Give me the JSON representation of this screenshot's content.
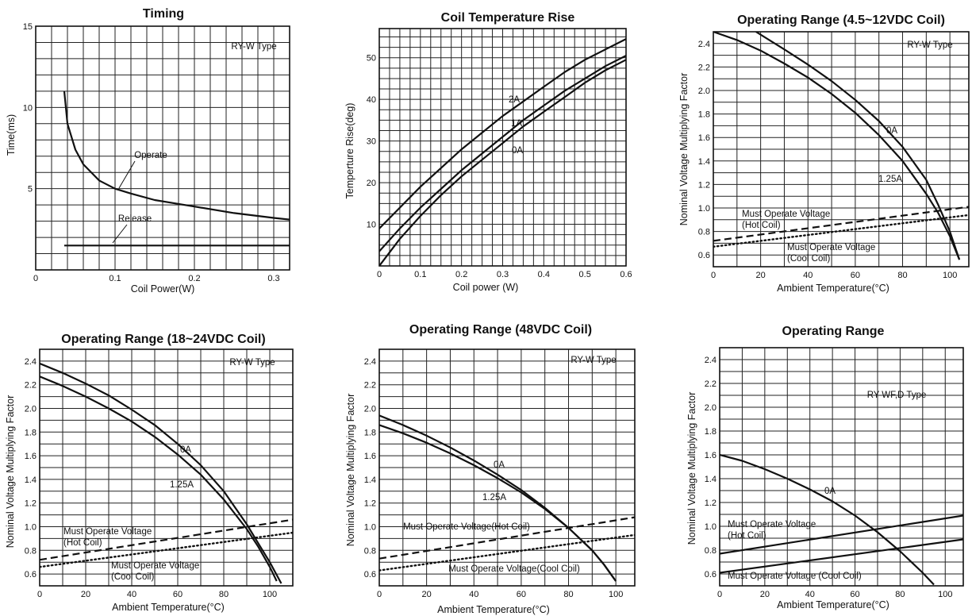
{
  "chart_data": [
    {
      "type": "line",
      "title": "Timing",
      "xlabel": "Coil Power(W)",
      "ylabel": "Time(ms)",
      "xlim": [
        0,
        0.32
      ],
      "ylim": [
        0,
        15
      ],
      "x_ticks": [
        0,
        0.1,
        0.2,
        0.3
      ],
      "x_tick_labels": [
        "0",
        "0.1",
        "0.2",
        "0.3"
      ],
      "y_ticks": [
        5,
        10,
        15
      ],
      "y_tick_labels": [
        "5",
        "10",
        "15"
      ],
      "grid": true,
      "type_label": "RY-W  Type",
      "series": [
        {
          "name": "Operate",
          "style": "solid",
          "x": [
            0.036,
            0.04,
            0.05,
            0.06,
            0.08,
            0.1,
            0.12,
            0.15,
            0.2,
            0.25,
            0.3,
            0.32
          ],
          "y": [
            11.0,
            9.0,
            7.4,
            6.5,
            5.5,
            5.0,
            4.7,
            4.3,
            3.9,
            3.5,
            3.2,
            3.1
          ]
        },
        {
          "name": "Release",
          "style": "solid",
          "x": [
            0.036,
            0.32
          ],
          "y": [
            1.5,
            1.5
          ]
        }
      ]
    },
    {
      "type": "line",
      "title": "Coil Temperature Rise",
      "xlabel": "Coil power (W)",
      "ylabel": "Temperture Rise(deg)",
      "xlim": [
        0,
        0.6
      ],
      "ylim": [
        0,
        57
      ],
      "x_ticks": [
        0,
        0.1,
        0.2,
        0.3,
        0.4,
        0.5,
        0.6
      ],
      "x_tick_labels": [
        "0",
        "0.1",
        "0.2",
        "0.3",
        "0.4",
        "0.5",
        "0.6"
      ],
      "y_ticks": [
        10,
        20,
        30,
        40,
        50
      ],
      "y_tick_labels": [
        "10",
        "20",
        "30",
        "40",
        "50"
      ],
      "grid": true,
      "series": [
        {
          "name": "2A",
          "style": "solid",
          "x": [
            0,
            0.05,
            0.1,
            0.15,
            0.2,
            0.25,
            0.3,
            0.35,
            0.4,
            0.45,
            0.5,
            0.55,
            0.6
          ],
          "y": [
            9,
            14,
            19,
            23.5,
            28,
            32,
            36,
            39.5,
            43,
            46.5,
            49.5,
            52,
            54.5
          ]
        },
        {
          "name": "1A",
          "style": "solid",
          "x": [
            0,
            0.05,
            0.1,
            0.15,
            0.2,
            0.25,
            0.3,
            0.35,
            0.4,
            0.45,
            0.5,
            0.55,
            0.6
          ],
          "y": [
            3.5,
            9,
            14,
            18.5,
            23,
            27,
            31,
            35,
            38.5,
            42,
            45,
            48,
            50.5
          ]
        },
        {
          "name": "0A",
          "style": "solid",
          "x": [
            0,
            0.05,
            0.1,
            0.15,
            0.2,
            0.25,
            0.3,
            0.35,
            0.4,
            0.45,
            0.5,
            0.55,
            0.6
          ],
          "y": [
            0,
            6.5,
            12,
            17,
            21.5,
            25.5,
            29.5,
            33.5,
            37,
            40.5,
            44,
            47,
            49.5
          ]
        }
      ]
    },
    {
      "type": "line",
      "title": "Operating Range (4.5~12VDC Coil)",
      "xlabel": "Ambient Temperature(°C)",
      "ylabel": "Nominal Voltage Multiplying Factor",
      "xlim": [
        0,
        108
      ],
      "ylim": [
        0.5,
        2.5
      ],
      "x_ticks": [
        0,
        20,
        40,
        60,
        80,
        100
      ],
      "x_tick_labels": [
        "0",
        "20",
        "40",
        "60",
        "80",
        "100"
      ],
      "y_ticks": [
        0.6,
        0.8,
        1.0,
        1.2,
        1.4,
        1.6,
        1.8,
        2.0,
        2.2,
        2.4
      ],
      "y_tick_labels": [
        "0.6",
        "0.8",
        "1.0",
        "1.2",
        "1.4",
        "1.6",
        "1.8",
        "2.0",
        "2.2",
        "2.4"
      ],
      "grid": true,
      "type_label": "RY-W  Type",
      "series": [
        {
          "name": "0A",
          "style": "solid",
          "x": [
            18,
            30,
            40,
            50,
            60,
            70,
            80,
            90,
            95,
            100,
            104
          ],
          "y": [
            2.5,
            2.35,
            2.22,
            2.08,
            1.92,
            1.74,
            1.52,
            1.24,
            1.03,
            0.8,
            0.56
          ]
        },
        {
          "name": "1.25A",
          "style": "solid",
          "x": [
            0,
            10,
            20,
            30,
            40,
            50,
            60,
            70,
            80,
            90,
            95,
            100,
            104
          ],
          "y": [
            2.5,
            2.43,
            2.34,
            2.23,
            2.11,
            1.97,
            1.81,
            1.62,
            1.4,
            1.12,
            0.96,
            0.76,
            0.56
          ]
        },
        {
          "name": "Must Operate Voltage (Hot Coil)",
          "style": "dashed",
          "x": [
            0,
            108
          ],
          "y": [
            0.72,
            1.01
          ]
        },
        {
          "name": "Must Operate Voltage (Cool Coil)",
          "style": "dotted",
          "x": [
            0,
            108
          ],
          "y": [
            0.67,
            0.94
          ]
        }
      ]
    },
    {
      "type": "line",
      "title": "Operating Range (18~24VDC Coil)",
      "xlabel": "Ambient Temperature(°C)",
      "ylabel": "Nominal Voltage Multiplying Factor",
      "xlim": [
        0,
        110
      ],
      "ylim": [
        0.5,
        2.5
      ],
      "x_ticks": [
        0,
        20,
        40,
        60,
        80,
        100
      ],
      "x_tick_labels": [
        "0",
        "20",
        "40",
        "60",
        "80",
        "100"
      ],
      "y_ticks": [
        0.6,
        0.8,
        1.0,
        1.2,
        1.4,
        1.6,
        1.8,
        2.0,
        2.2,
        2.4
      ],
      "y_tick_labels": [
        "0.6",
        "0.8",
        "1.0",
        "1.2",
        "1.4",
        "1.6",
        "1.8",
        "2.0",
        "2.2",
        "2.4"
      ],
      "grid": true,
      "type_label": "RY-W  Type",
      "series": [
        {
          "name": "0A",
          "style": "solid",
          "x": [
            0,
            10,
            20,
            30,
            40,
            50,
            60,
            70,
            80,
            90,
            95,
            100,
            105
          ],
          "y": [
            2.38,
            2.3,
            2.21,
            2.11,
            1.99,
            1.86,
            1.7,
            1.52,
            1.3,
            1.02,
            0.86,
            0.7,
            0.52
          ]
        },
        {
          "name": "1.25A",
          "style": "solid",
          "x": [
            0,
            10,
            20,
            30,
            40,
            50,
            60,
            70,
            80,
            90,
            95,
            100,
            103
          ],
          "y": [
            2.27,
            2.19,
            2.1,
            2.0,
            1.89,
            1.76,
            1.61,
            1.44,
            1.23,
            0.98,
            0.83,
            0.66,
            0.54
          ]
        },
        {
          "name": "Must Operate Voltage (Hot Coil)",
          "style": "dashed",
          "x": [
            0,
            110
          ],
          "y": [
            0.72,
            1.06
          ]
        },
        {
          "name": "Must Operate Voltage (Cool Coil)",
          "style": "dotted",
          "x": [
            0,
            110
          ],
          "y": [
            0.66,
            0.95
          ]
        }
      ]
    },
    {
      "type": "line",
      "title": "Operating Range (48VDC Coil)",
      "xlabel": "Ambient Temperature(°C)",
      "ylabel": "Nominal Voltage Multiplying Factor",
      "xlim": [
        0,
        108
      ],
      "ylim": [
        0.5,
        2.5
      ],
      "x_ticks": [
        0,
        20,
        40,
        60,
        80,
        100
      ],
      "x_tick_labels": [
        "0",
        "20",
        "40",
        "60",
        "80",
        "100"
      ],
      "y_ticks": [
        0.6,
        0.8,
        1.0,
        1.2,
        1.4,
        1.6,
        1.8,
        2.0,
        2.2,
        2.4
      ],
      "y_tick_labels": [
        "0.6",
        "0.8",
        "1.0",
        "1.2",
        "1.4",
        "1.6",
        "1.8",
        "2.0",
        "2.2",
        "2.4"
      ],
      "grid": true,
      "type_label": "RY-W  Type",
      "series": [
        {
          "name": "0A",
          "style": "solid",
          "x": [
            0,
            10,
            20,
            30,
            40,
            50,
            60,
            70,
            80,
            90,
            95,
            100
          ],
          "y": [
            1.94,
            1.86,
            1.77,
            1.67,
            1.56,
            1.44,
            1.31,
            1.16,
            0.99,
            0.8,
            0.68,
            0.54
          ]
        },
        {
          "name": "1.25A",
          "style": "solid",
          "x": [
            0,
            10,
            20,
            30,
            40,
            50,
            60,
            70,
            80,
            90,
            95,
            100
          ],
          "y": [
            1.86,
            1.79,
            1.71,
            1.62,
            1.52,
            1.41,
            1.29,
            1.15,
            0.99,
            0.8,
            0.68,
            0.54
          ]
        },
        {
          "name": "Must Operate Voltage(Hot Coil)",
          "style": "dashed",
          "x": [
            0,
            108
          ],
          "y": [
            0.73,
            1.08
          ]
        },
        {
          "name": "Must Operate Voltage(Cool Coil)",
          "style": "dotted",
          "x": [
            0,
            108
          ],
          "y": [
            0.63,
            0.93
          ]
        }
      ]
    },
    {
      "type": "line",
      "title": "Operating Range",
      "xlabel": "Ambient Temperature(°C)",
      "ylabel": "Nominal Voltage Multiplying Factor",
      "xlim": [
        0,
        108
      ],
      "ylim": [
        0.5,
        2.5
      ],
      "x_ticks": [
        0,
        20,
        40,
        60,
        80,
        100
      ],
      "x_tick_labels": [
        "0",
        "20",
        "40",
        "60",
        "80",
        "100"
      ],
      "y_ticks": [
        0.6,
        0.8,
        1.0,
        1.2,
        1.4,
        1.6,
        1.8,
        2.0,
        2.2,
        2.4
      ],
      "y_tick_labels": [
        "0.6",
        "0.8",
        "1.0",
        "1.2",
        "1.4",
        "1.6",
        "1.8",
        "2.0",
        "2.2",
        "2.4"
      ],
      "grid": true,
      "type_label": "RY-WF,D Type",
      "series": [
        {
          "name": "0A",
          "style": "solid",
          "x": [
            0,
            10,
            20,
            30,
            40,
            50,
            60,
            70,
            80,
            90,
            95
          ],
          "y": [
            1.6,
            1.55,
            1.48,
            1.4,
            1.31,
            1.21,
            1.09,
            0.95,
            0.79,
            0.61,
            0.51
          ]
        },
        {
          "name": "Must Operate Voltage (Hot Coil)",
          "style": "solid",
          "x": [
            0,
            108
          ],
          "y": [
            0.77,
            1.09
          ]
        },
        {
          "name": "Must Operate Voltage (Cool Coil)",
          "style": "solid",
          "x": [
            0,
            108
          ],
          "y": [
            0.61,
            0.89
          ]
        }
      ]
    }
  ],
  "labels": {
    "timing_operate": "Operate",
    "timing_release": "Release",
    "temp_2a": "2A",
    "temp_1a": "1A",
    "temp_0a": "0A",
    "r1_0a": "0A",
    "r1_125a": "1.25A",
    "r1_hot_1": "Must Operate Voltage",
    "r1_hot_2": "(Hot Coil)",
    "r1_cool_1": "Must Operate Voltage",
    "r1_cool_2": "(Cool Coil)",
    "r2_0a": "0A",
    "r2_125a": "1.25A",
    "r2_hot_1": "Must Operate Voltage",
    "r2_hot_2": "(Hot Coil)",
    "r2_cool_1": "Must Operate Voltage",
    "r2_cool_2": "(Cool Coil)",
    "r3_0a": "0A",
    "r3_125a": "1.25A",
    "r3_hot": "Must Operate Voltage(Hot Coil)",
    "r3_cool": "Must Operate Voltage(Cool Coil)",
    "r4_0a": "0A",
    "r4_hot_1": "Must Operate Voltage",
    "r4_hot_2": "(Hot Coil)",
    "r4_cool": "Must Operate Voltage (Cool Coil)"
  }
}
